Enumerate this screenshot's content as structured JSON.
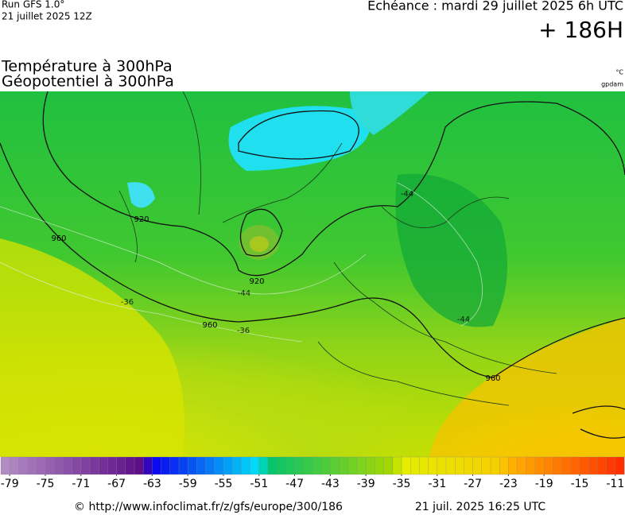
{
  "header": {
    "run": "Run GFS 1.0°",
    "run_date": "21 juillet 2025 12Z",
    "valid": "Echéance : mardi 29 juillet 2025 6h UTC",
    "lead": "+ 186H",
    "title1": "Température à 300hPa",
    "title2": "Géopotentiel à 300hPa",
    "unit1": "°C",
    "unit2": "gpdam"
  },
  "map": {
    "geopotential_labels": [
      920,
      920,
      960,
      960,
      960
    ],
    "temperature_labels": [
      -44,
      -44,
      -36,
      -36,
      -44
    ]
  },
  "legend": {
    "range": [
      -80,
      -10
    ],
    "stops": [
      {
        "value": -80,
        "color": "#b58fc6"
      },
      {
        "value": -64,
        "color": "#5b0b86"
      },
      {
        "value": -63,
        "color": "#0a00f0"
      },
      {
        "value": -51,
        "color": "#00e2f8"
      },
      {
        "value": -50,
        "color": "#00c46e"
      },
      {
        "value": -36,
        "color": "#a8d800"
      },
      {
        "value": -35,
        "color": "#e4ee00"
      },
      {
        "value": -24,
        "color": "#f6cf00"
      },
      {
        "value": -23,
        "color": "#ffb400"
      },
      {
        "value": -10,
        "color": "#ff2a00"
      }
    ],
    "ticks": [
      -79,
      -75,
      -71,
      -67,
      -63,
      -59,
      -55,
      -51,
      -47,
      -43,
      -39,
      -35,
      -31,
      -27,
      -23,
      -19,
      -15,
      -11
    ]
  },
  "footer": {
    "url": "© http://www.infoclimat.fr/z/gfs/europe/300/186",
    "stamp": "21 juil. 2025 16:25 UTC"
  }
}
